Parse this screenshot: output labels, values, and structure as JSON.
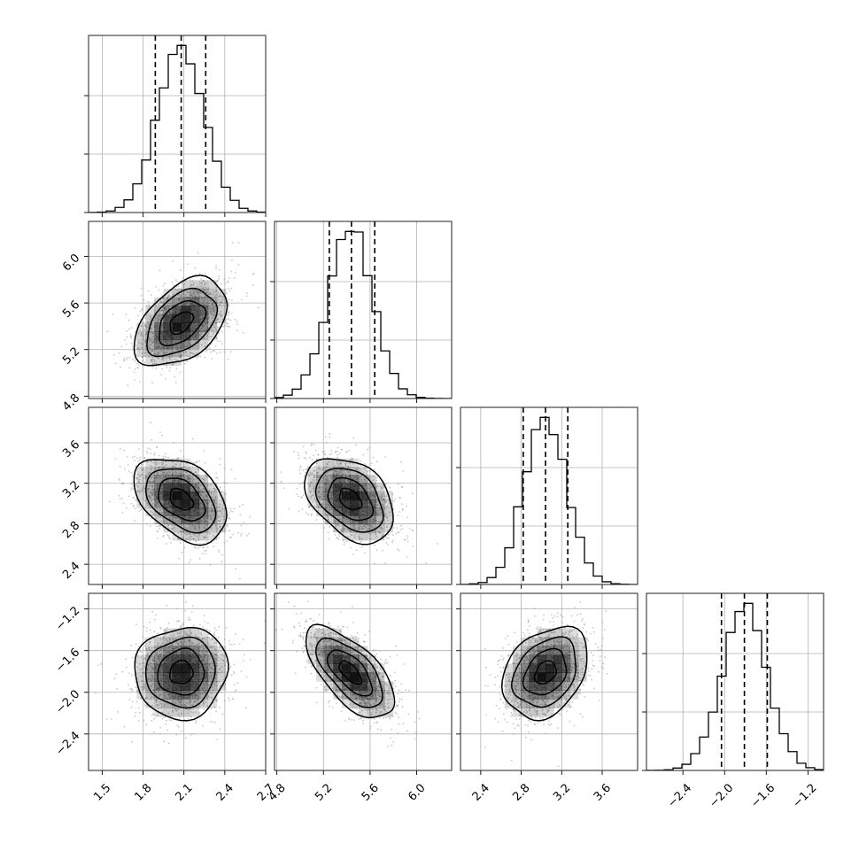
{
  "chart_data": {
    "type": "corner",
    "parameters": [
      {
        "index": 0,
        "mean": 2.08,
        "std": 0.17,
        "range": [
          1.4,
          2.7
        ],
        "ticks": [
          1.5,
          1.8,
          2.1,
          2.4,
          2.7
        ],
        "quantiles": [
          1.89,
          2.08,
          2.26
        ]
      },
      {
        "index": 1,
        "mean": 5.43,
        "std": 0.19,
        "range": [
          4.78,
          6.3
        ],
        "ticks": [
          4.8,
          5.2,
          5.6,
          6.0
        ],
        "quantiles": [
          5.25,
          5.44,
          5.64
        ]
      },
      {
        "index": 2,
        "mean": 3.04,
        "std": 0.21,
        "range": [
          2.2,
          3.95
        ],
        "ticks": [
          2.4,
          2.8,
          3.2,
          3.6
        ],
        "quantiles": [
          2.82,
          3.04,
          3.26
        ]
      },
      {
        "index": 3,
        "mean": -1.81,
        "std": 0.22,
        "range": [
          -2.75,
          -1.05
        ],
        "ticks": [
          -2.4,
          -2.0,
          -1.6,
          -1.2
        ],
        "quantiles": [
          -2.03,
          -1.81,
          -1.59
        ]
      }
    ],
    "correlations": [
      {
        "row": 1,
        "col": 0,
        "rho": 0.45
      },
      {
        "row": 2,
        "col": 0,
        "rho": -0.4
      },
      {
        "row": 2,
        "col": 1,
        "rho": -0.38
      },
      {
        "row": 3,
        "col": 0,
        "rho": 0.05
      },
      {
        "row": 3,
        "col": 1,
        "rho": -0.65
      },
      {
        "row": 3,
        "col": 2,
        "rho": 0.3
      }
    ],
    "histogram_bins": 20,
    "contour_levels_sigma": [
      0.5,
      1.0,
      1.5,
      2.0
    ],
    "grid": true,
    "colors": {
      "points": "#9a9a9a",
      "line": "#000000",
      "density": "#000000",
      "grid": "#b0b0b0"
    }
  }
}
